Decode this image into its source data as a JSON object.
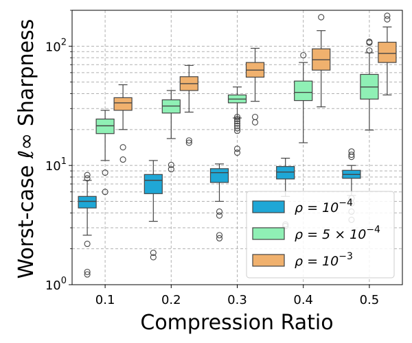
{
  "chart_data": {
    "type": "box",
    "xlabel": "Compression Ratio",
    "ylabel": "Worst-case ℓ∞ Sharpness",
    "yscale": "log",
    "ylim": [
      1,
      200
    ],
    "y_ticks": [
      {
        "value": 1,
        "base": "10",
        "exp": "0"
      },
      {
        "value": 10,
        "base": "10",
        "exp": "1"
      },
      {
        "value": 100,
        "base": "10",
        "exp": "2"
      }
    ],
    "categories": [
      "0.1",
      "0.2",
      "0.3",
      "0.4",
      "0.5"
    ],
    "grid": true,
    "legend_position": "lower-right",
    "series": [
      {
        "name": "ρ = 10^-4",
        "legend": {
          "pre": "ρ = 10",
          "sup": "−4"
        },
        "color": "#1fa7d6",
        "boxes": [
          {
            "whislo": 2.6,
            "q1": 4.4,
            "med": 5.0,
            "q3": 5.5,
            "whishi": 7.5,
            "fliers": [
              1.22,
              1.28,
              2.2,
              7.8,
              8.3
            ]
          },
          {
            "whislo": 3.4,
            "q1": 5.8,
            "med": 7.5,
            "q3": 8.4,
            "whishi": 11.0,
            "fliers": [
              1.7,
              1.85
            ]
          },
          {
            "whislo": 5.0,
            "q1": 7.2,
            "med": 8.7,
            "q3": 9.4,
            "whishi": 10.3,
            "fliers": [
              2.45,
              2.6,
              3.8,
              4.1
            ]
          },
          {
            "whislo": 5.5,
            "q1": 7.7,
            "med": 8.8,
            "q3": 9.8,
            "whishi": 11.5,
            "fliers": [
              3.1,
              3.2
            ]
          },
          {
            "whislo": 5.6,
            "q1": 7.8,
            "med": 8.4,
            "q3": 9.1,
            "whishi": 10.0,
            "fliers": [
              3.5,
              4.1,
              4.8,
              5.3,
              11.8,
              12.3,
              13.1
            ]
          }
        ]
      },
      {
        "name": "ρ = 5×10^-4",
        "legend": {
          "pre": "ρ = 5 × 10",
          "sup": "−4"
        },
        "color": "#8ff0b5",
        "boxes": [
          {
            "whislo": 11.0,
            "q1": 18.5,
            "med": 21.5,
            "q3": 24.5,
            "whishi": 29.0,
            "fliers": [
              6.0,
              8.7
            ]
          },
          {
            "whislo": 16.8,
            "q1": 27.5,
            "med": 31.5,
            "q3": 35.5,
            "whishi": 42.5,
            "fliers": [
              9.3,
              10.1
            ]
          },
          {
            "whislo": 25.0,
            "q1": 33.5,
            "med": 36.0,
            "q3": 39.0,
            "whishi": 45.5,
            "fliers": [
              12.8,
              13.8,
              19.5,
              20.5,
              21.5,
              22.5,
              23.5,
              24.5,
              25.5
            ]
          },
          {
            "whislo": 15.5,
            "q1": 35.0,
            "med": 41.0,
            "q3": 51.0,
            "whishi": 73.0,
            "fliers": [
              84.0
            ]
          },
          {
            "whislo": 19.8,
            "q1": 36.0,
            "med": 45.5,
            "q3": 58.0,
            "whishi": 88.0,
            "fliers": [
              92.0,
              107.0,
              109.0
            ]
          }
        ]
      },
      {
        "name": "ρ = 10^-3",
        "legend": {
          "pre": "ρ = 10",
          "sup": "−3"
        },
        "color": "#f0b16e",
        "boxes": [
          {
            "whislo": 20.0,
            "q1": 29.0,
            "med": 33.5,
            "q3": 37.0,
            "whishi": 47.5,
            "fliers": [
              11.2,
              14.2
            ]
          },
          {
            "whislo": 28.0,
            "q1": 42.5,
            "med": 48.5,
            "q3": 55.5,
            "whishi": 69.0,
            "fliers": [
              15.5,
              16.2
            ]
          },
          {
            "whislo": 34.5,
            "q1": 55.0,
            "med": 63.0,
            "q3": 73.0,
            "whishi": 96.0,
            "fliers": [
              23.0,
              25.5
            ]
          },
          {
            "whislo": 31.0,
            "q1": 63.0,
            "med": 77.0,
            "q3": 95.0,
            "whishi": 135.0,
            "fliers": [
              175.0
            ]
          },
          {
            "whislo": 39.0,
            "q1": 73.0,
            "med": 87.0,
            "q3": 108.0,
            "whishi": 145.0,
            "fliers": [
              168.0,
              180.0
            ]
          }
        ]
      }
    ]
  }
}
